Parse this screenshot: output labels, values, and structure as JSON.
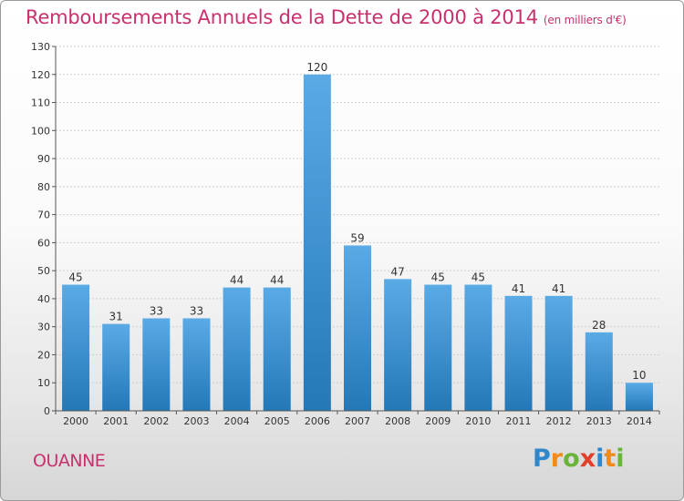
{
  "title": "Remboursements Annuels de la Dette de 2000 à 2014",
  "title_unit": "(en milliers d'€)",
  "commune": "OUANNE",
  "logo": {
    "text": "Proxiti",
    "letter_colors": [
      "#2f86c8",
      "#f08a1c",
      "#6ab43c",
      "#e0402a",
      "#2f86c8",
      "#f08a1c",
      "#6ab43c"
    ]
  },
  "colors": {
    "title": "#c8306e",
    "bar_top": "#5aaae6",
    "bar_bottom": "#2478b8",
    "grid": "#cfcfcf",
    "axis": "#555555"
  },
  "chart_data": {
    "type": "bar",
    "title": "Remboursements Annuels de la Dette de 2000 à 2014",
    "categories": [
      "2000",
      "2001",
      "2002",
      "2003",
      "2004",
      "2005",
      "2006",
      "2007",
      "2008",
      "2009",
      "2010",
      "2011",
      "2012",
      "2013",
      "2014"
    ],
    "values": [
      45,
      31,
      33,
      33,
      44,
      44,
      120,
      59,
      47,
      45,
      45,
      41,
      41,
      28,
      10
    ],
    "ylim": [
      0,
      130
    ],
    "yticks": [
      0,
      10,
      20,
      30,
      40,
      50,
      60,
      70,
      80,
      90,
      100,
      110,
      120,
      130
    ],
    "grid": true,
    "data_labels": true
  }
}
